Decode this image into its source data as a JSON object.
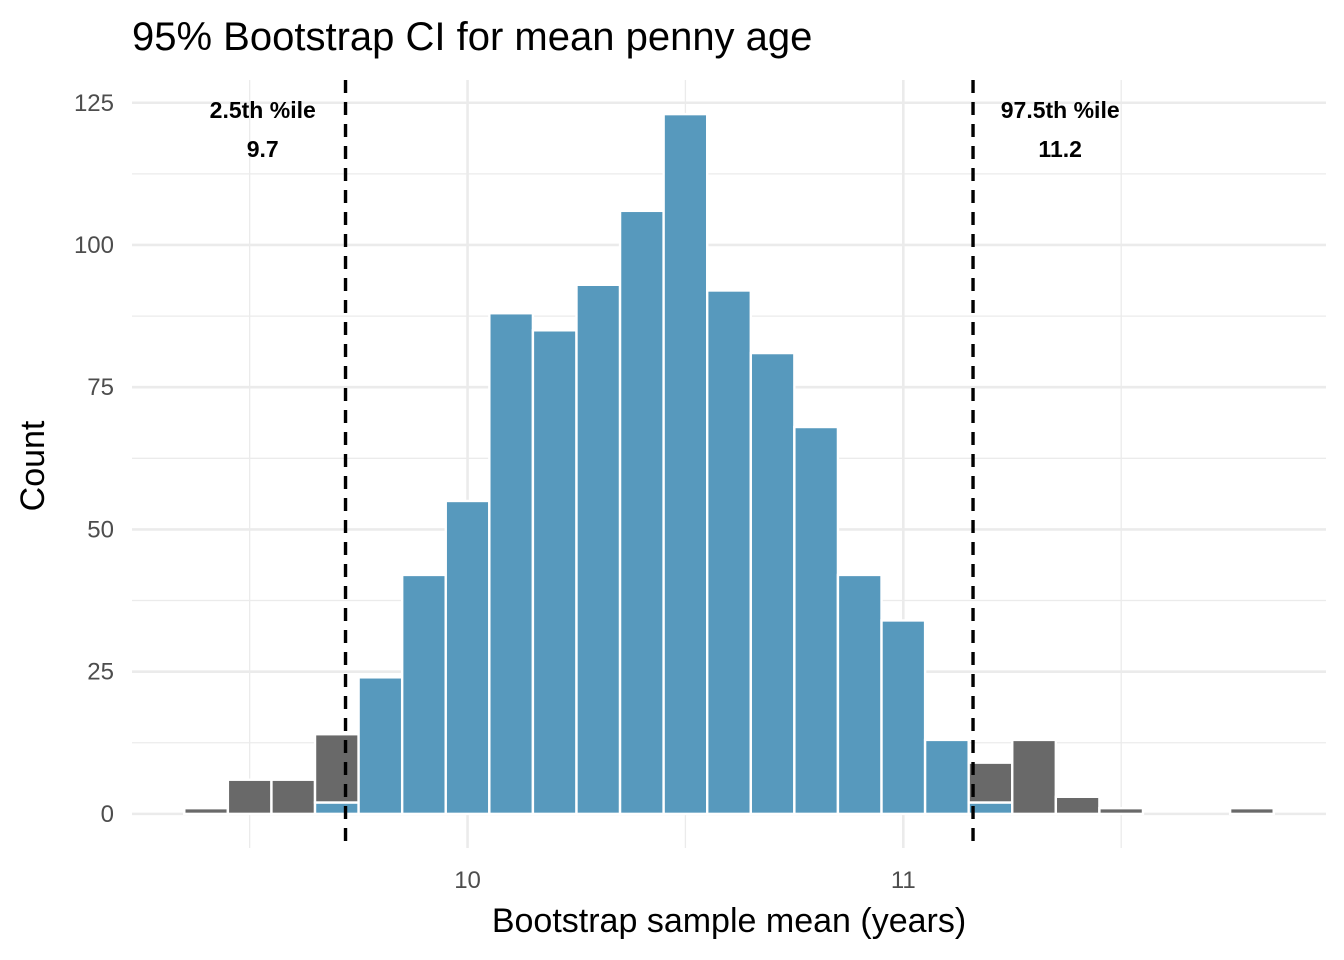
{
  "chart_data": {
    "type": "bar",
    "title": "95% Bootstrap CI for mean penny age",
    "xlabel": "Bootstrap sample mean (years)",
    "ylabel": "Count",
    "xlim": [
      9.23,
      11.97
    ],
    "ylim": [
      -6,
      129
    ],
    "x_ticks": [
      10,
      11
    ],
    "x_tick_labels": [
      "10",
      "11"
    ],
    "y_ticks": [
      0,
      25,
      50,
      75,
      100,
      125
    ],
    "y_tick_labels": [
      "0",
      "25",
      "50",
      "75",
      "100",
      "125"
    ],
    "grid": true,
    "legend": "none",
    "bin_width": 0.1,
    "bars": [
      {
        "x": 9.4,
        "count": 1,
        "in_ci": 0
      },
      {
        "x": 9.5,
        "count": 6,
        "in_ci": 0
      },
      {
        "x": 9.6,
        "count": 6,
        "in_ci": 0
      },
      {
        "x": 9.7,
        "count": 14,
        "in_ci": 2
      },
      {
        "x": 9.8,
        "count": 24,
        "in_ci": 24
      },
      {
        "x": 9.9,
        "count": 42,
        "in_ci": 42
      },
      {
        "x": 10.0,
        "count": 55,
        "in_ci": 55
      },
      {
        "x": 10.1,
        "count": 88,
        "in_ci": 88
      },
      {
        "x": 10.2,
        "count": 85,
        "in_ci": 85
      },
      {
        "x": 10.3,
        "count": 93,
        "in_ci": 93
      },
      {
        "x": 10.4,
        "count": 106,
        "in_ci": 106
      },
      {
        "x": 10.5,
        "count": 123,
        "in_ci": 123
      },
      {
        "x": 10.6,
        "count": 92,
        "in_ci": 92
      },
      {
        "x": 10.7,
        "count": 81,
        "in_ci": 81
      },
      {
        "x": 10.8,
        "count": 68,
        "in_ci": 68
      },
      {
        "x": 10.9,
        "count": 42,
        "in_ci": 42
      },
      {
        "x": 11.0,
        "count": 34,
        "in_ci": 34
      },
      {
        "x": 11.1,
        "count": 13,
        "in_ci": 13
      },
      {
        "x": 11.2,
        "count": 9,
        "in_ci": 2
      },
      {
        "x": 11.3,
        "count": 13,
        "in_ci": 0
      },
      {
        "x": 11.4,
        "count": 3,
        "in_ci": 0
      },
      {
        "x": 11.5,
        "count": 1,
        "in_ci": 0
      },
      {
        "x": 11.8,
        "count": 1,
        "in_ci": 0
      }
    ],
    "ci_lines": [
      {
        "x": 9.72,
        "label_line1": "2.5th %ile",
        "label_line2": "9.7",
        "label_x": 9.53
      },
      {
        "x": 11.16,
        "label_line1": "97.5th %ile",
        "label_line2": "11.2",
        "label_x": 11.36
      }
    ],
    "colors": {
      "in_ci": "#5799bd",
      "out_ci": "#696969",
      "bar_outline": "#ffffff",
      "grid": "#ebebeb",
      "ci_line": "#000000"
    }
  }
}
